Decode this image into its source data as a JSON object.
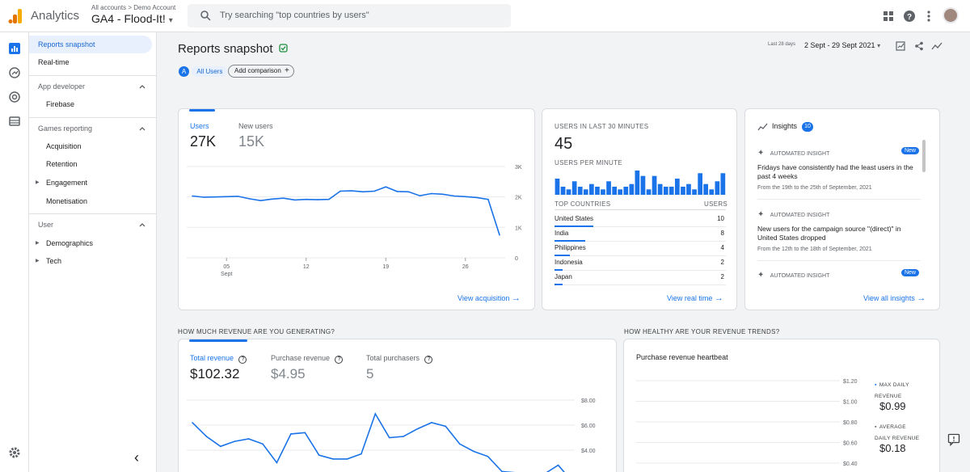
{
  "app": {
    "title": "Analytics",
    "crumbs": "All accounts > Demo Account",
    "property": "GA4 - Flood-It!",
    "property_caret": "▾"
  },
  "search": {
    "placeholder": "Try searching \"top countries by users\""
  },
  "nav": {
    "items": [
      "Reports snapshot",
      "Real-time"
    ],
    "app_developer": {
      "label": "App developer",
      "items": [
        "Firebase"
      ]
    },
    "games_reporting": {
      "label": "Games reporting",
      "items": [
        "Acquisition",
        "Retention",
        "Engagement",
        "Monetisation"
      ]
    },
    "user": {
      "label": "User",
      "items": [
        "Demographics",
        "Tech"
      ]
    },
    "collapse_icon": "‹"
  },
  "header": {
    "title": "Reports snapshot",
    "range_label": "Last 28 days",
    "range": "2 Sept - 29 Sept 2021",
    "segment_letter": "A",
    "segment": "All Users",
    "add_comparison": "Add comparison",
    "add_plus": "+"
  },
  "users_card": {
    "metrics": [
      {
        "label": "Users",
        "value": "27K"
      },
      {
        "label": "New users",
        "value": "15K"
      }
    ],
    "link": "View acquisition",
    "arrow": "→",
    "chart_y_ticks": [
      "3K",
      "2K",
      "1K",
      "0"
    ],
    "chart_x_ticks": [
      "05",
      "12",
      "19",
      "26"
    ],
    "x_sub": "Sept"
  },
  "realtime_card": {
    "heading": "USERS IN LAST 30 MINUTES",
    "value": "45",
    "per_minute": "USERS PER MINUTE",
    "countries_heading": "TOP COUNTRIES",
    "users_heading": "USERS",
    "countries": [
      {
        "name": "United States",
        "value": "10"
      },
      {
        "name": "India",
        "value": "8"
      },
      {
        "name": "Philippines",
        "value": "4"
      },
      {
        "name": "Indonesia",
        "value": "2"
      },
      {
        "name": "Japan",
        "value": "2"
      }
    ],
    "link": "View real time",
    "arrow": "→"
  },
  "insights_card": {
    "title": "Insights",
    "count": "10",
    "items": [
      {
        "label": "AUTOMATED INSIGHT",
        "badge": "New",
        "text": "Fridays have consistently had the least users in the past 4 weeks",
        "date": "From the 19th to the 25th of September, 2021"
      },
      {
        "label": "AUTOMATED INSIGHT",
        "badge": "",
        "text": "New users for the campaign source \"(direct)\" in United States dropped",
        "date": "From the 12th to the 18th of September, 2021"
      },
      {
        "label": "AUTOMATED INSIGHT",
        "badge": "New",
        "text": "",
        "date": ""
      }
    ],
    "link": "View all insights",
    "arrow": "→"
  },
  "revenue_section": {
    "heading": "HOW MUCH REVENUE ARE YOU GENERATING?",
    "metrics": [
      {
        "label": "Total revenue",
        "value": "$102.32"
      },
      {
        "label": "Purchase revenue",
        "value": "$4.95"
      },
      {
        "label": "Total purchasers",
        "value": "5"
      }
    ],
    "help_glyph": "?",
    "chart_y_ticks": [
      "$8.00",
      "$6.00",
      "$4.00"
    ]
  },
  "trends_section": {
    "heading": "HOW HEALTHY ARE YOUR REVENUE TRENDS?",
    "card_title": "Purchase revenue heartbeat",
    "y_ticks": [
      "$1.20",
      "$1.00",
      "$0.80",
      "$0.60",
      "$0.40"
    ],
    "max_label": "MAX DAILY REVENUE",
    "max_value": "$0.99",
    "avg_label": "AVERAGE DAILY REVENUE",
    "avg_value": "$0.18"
  },
  "colors": {
    "accent": "#1a73e8",
    "success": "#1e8e3e"
  },
  "chart_data": [
    {
      "type": "line",
      "ylabel": "",
      "xlabel": "",
      "ylim": [
        0,
        3000
      ],
      "x": [
        2,
        3,
        4,
        5,
        6,
        7,
        8,
        9,
        10,
        11,
        12,
        13,
        14,
        15,
        16,
        17,
        18,
        19,
        20,
        21,
        22,
        23,
        24,
        25,
        26,
        27,
        28,
        29
      ],
      "values": [
        2030,
        1990,
        2000,
        2010,
        2020,
        1940,
        1880,
        1930,
        1960,
        1900,
        1920,
        1910,
        1920,
        2190,
        2200,
        2170,
        2190,
        2330,
        2180,
        2170,
        2040,
        2110,
        2090,
        2030,
        2010,
        1980,
        1920,
        750
      ],
      "x_tick_labels": [
        "05 Sept",
        "12",
        "19",
        "26"
      ],
      "y_tick_labels": [
        "3K",
        "2K",
        "1K",
        "0"
      ]
    },
    {
      "type": "bar",
      "values": [
        6,
        3,
        2,
        5,
        3,
        2,
        4,
        3,
        2,
        5,
        3,
        2,
        3,
        4,
        9,
        7,
        2,
        7,
        4,
        3,
        3,
        6,
        3,
        4,
        2,
        8,
        4,
        2,
        5,
        8
      ]
    },
    {
      "type": "line",
      "ylim": [
        0,
        8
      ],
      "x": [
        2,
        3,
        4,
        5,
        6,
        7,
        8,
        9,
        10,
        11,
        12,
        13,
        14,
        15,
        16,
        17,
        18,
        19,
        20,
        21,
        22,
        23,
        24,
        25,
        26,
        27,
        28,
        29
      ],
      "values": [
        6.2,
        5.1,
        4.3,
        4.7,
        4.9,
        4.5,
        3.0,
        5.3,
        5.4,
        3.6,
        3.3,
        3.3,
        3.7,
        6.9,
        5.0,
        5.1,
        5.7,
        6.2,
        5.9,
        4.5,
        3.9,
        3.5,
        2.3,
        2.2,
        2.0,
        2.1,
        2.8,
        1.5
      ],
      "y_tick_labels": [
        "$8.00",
        "$6.00",
        "$4.00"
      ]
    }
  ]
}
